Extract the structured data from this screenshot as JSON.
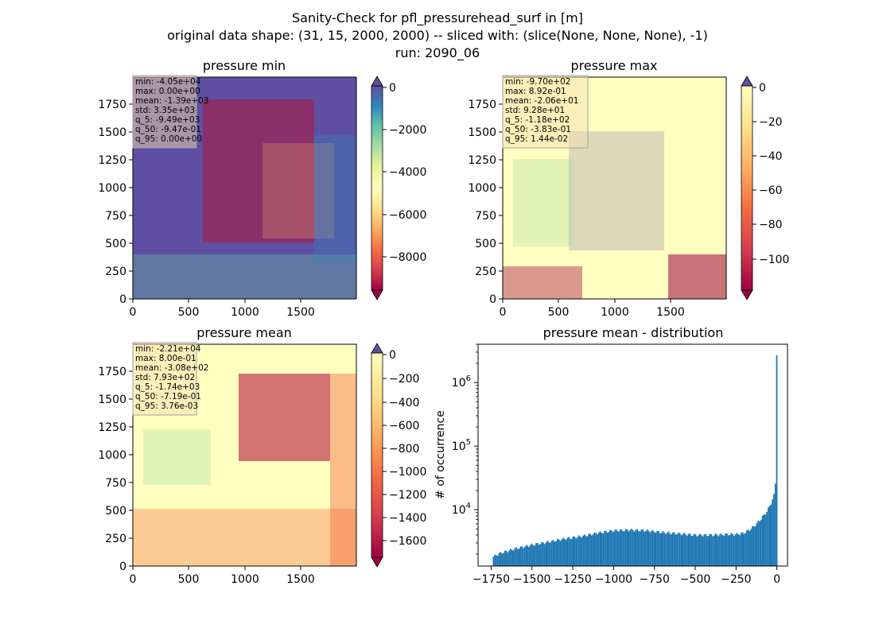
{
  "figure": {
    "suptitle_lines": [
      "Sanity-Check for pfl_pressurehead_surf in [m]",
      "original data shape: (31, 15, 2000, 2000) -- sliced with: (slice(None, None, None), -1)",
      "run: 2090_06"
    ]
  },
  "colors": {
    "histogram_bar": "#1f77b4",
    "spectral_low": "#9e0142",
    "spectral_high": "#5e4fa2"
  },
  "chart_data": [
    {
      "type": "heatmap",
      "title": "pressure min",
      "colormap": "Spectral",
      "xlim": [
        0,
        2000
      ],
      "ylim": [
        0,
        2000
      ],
      "xticks": [
        0,
        500,
        1000,
        1500
      ],
      "yticks": [
        0,
        250,
        500,
        750,
        1000,
        1250,
        1500,
        1750
      ],
      "colorbar": {
        "ticks": [
          0,
          -2000,
          -4000,
          -6000,
          -8000
        ],
        "extend": "both"
      },
      "stats": [
        "min: -4.05e+04",
        "max: 0.00e+00",
        "mean: -1.39e+03",
        "std: 3.35e+03",
        "q_5: -9.49e+03",
        "q_50: -9.47e-01",
        "q_95: 0.00e+00"
      ]
    },
    {
      "type": "heatmap",
      "title": "pressure max",
      "colormap": "Spectral",
      "xlim": [
        0,
        2000
      ],
      "ylim": [
        0,
        2000
      ],
      "xticks": [
        0,
        500,
        1000,
        1500
      ],
      "yticks": [
        0,
        250,
        500,
        750,
        1000,
        1250,
        1500,
        1750
      ],
      "colorbar": {
        "ticks": [
          0,
          -20,
          -40,
          -60,
          -80,
          -100
        ],
        "extend": "both"
      },
      "stats": [
        "min: -9.70e+02",
        "max: 8.92e-01",
        "mean: -2.06e+01",
        "std: 9.28e+01",
        "q_5: -1.18e+02",
        "q_50: -3.83e-01",
        "q_95: 1.44e-02"
      ]
    },
    {
      "type": "heatmap",
      "title": "pressure mean",
      "colormap": "Spectral",
      "xlim": [
        0,
        2000
      ],
      "ylim": [
        0,
        2000
      ],
      "xticks": [
        0,
        500,
        1000,
        1500
      ],
      "yticks": [
        0,
        250,
        500,
        750,
        1000,
        1250,
        1500,
        1750
      ],
      "colorbar": {
        "ticks": [
          0,
          -200,
          -400,
          -600,
          -800,
          -1000,
          -1200,
          -1400,
          -1600
        ],
        "extend": "both"
      },
      "stats": [
        "min: -2.21e+04",
        "max: 8.00e-01",
        "mean: -3.08e+02",
        "std: 7.93e+02",
        "q_5: -1.74e+03",
        "q_50: -7.19e-01",
        "q_95: 3.76e-03"
      ]
    },
    {
      "type": "bar",
      "title": "pressure mean - distribution",
      "ylabel": "# of occurrence",
      "yscale": "log",
      "xlim": [
        -1830,
        65
      ],
      "ylim": [
        1300,
        4000000
      ],
      "xticks": [
        -1750,
        -1500,
        -1250,
        -1000,
        -750,
        -500,
        -250,
        0
      ],
      "xtick_labels": [
        "−1750",
        "−1500",
        "−1250",
        "−1000",
        "−750",
        "−500",
        "−250",
        "0"
      ],
      "yticks": [
        10000,
        100000,
        1000000
      ],
      "ytick_labels": [
        [
          "10",
          "4"
        ],
        [
          "10",
          "5"
        ],
        [
          "10",
          "6"
        ]
      ],
      "bin_range": [
        -1740,
        3.76
      ],
      "bins": 200,
      "anchors": [
        [
          -1740,
          1800
        ],
        [
          -1700,
          2050
        ],
        [
          -1600,
          2450
        ],
        [
          -1500,
          2800
        ],
        [
          -1400,
          3100
        ],
        [
          -1300,
          3500
        ],
        [
          -1200,
          3800
        ],
        [
          -1100,
          4300
        ],
        [
          -1000,
          4700
        ],
        [
          -900,
          4800
        ],
        [
          -800,
          4700
        ],
        [
          -700,
          4400
        ],
        [
          -600,
          4200
        ],
        [
          -500,
          4000
        ],
        [
          -400,
          4000
        ],
        [
          -300,
          4100
        ],
        [
          -250,
          4100
        ],
        [
          -200,
          4300
        ],
        [
          -150,
          5200
        ],
        [
          -100,
          7000
        ],
        [
          -60,
          9500
        ],
        [
          -30,
          13500
        ],
        [
          -15,
          18000
        ],
        [
          -3,
          40000
        ]
      ],
      "peak": {
        "x": 0,
        "y": 2700000
      }
    }
  ]
}
